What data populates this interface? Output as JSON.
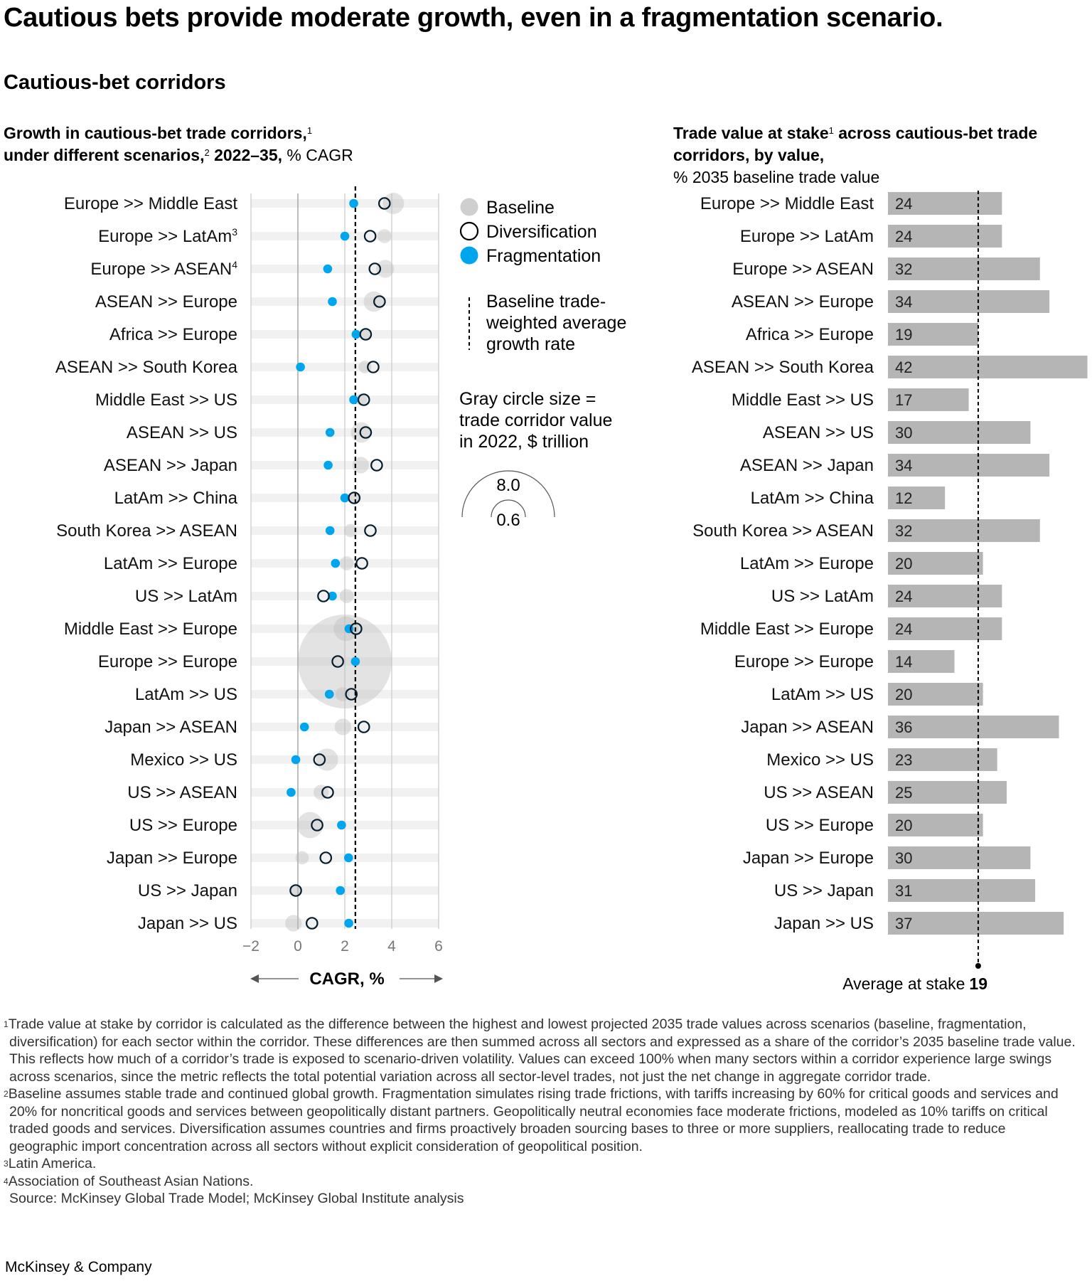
{
  "title": "Cautious bets provide moderate growth, even in a fragmentation scenario.",
  "subtitle": "Cautious-bet corridors",
  "left_title": {
    "part1": "Growth in cautious-bet trade corridors,",
    "sup1": "1",
    "part2": "under different scenarios,",
    "sup2": "2",
    "part3": " 2022–35,",
    "part4": " % CAGR"
  },
  "right_title": {
    "part1": "Trade value at stake",
    "sup1": "1",
    "part2": " across cautious-bet trade corridors, by value,",
    "part3": " % 2035 baseline trade value"
  },
  "legend": {
    "baseline": "Baseline",
    "diversification": "Diversification",
    "fragmentation": "Fragmentation",
    "avg_line": [
      "Baseline trade-",
      "weighted average",
      "growth rate"
    ],
    "size_note": [
      "Gray circle size =",
      "trade corridor value",
      "in 2022, $ trillion"
    ],
    "size_large": "8.0",
    "size_small": "0.6"
  },
  "colors": {
    "fragmentation": "#00a6ed",
    "diversification": "#051c2c",
    "baseline": "#cfcfcf",
    "bar": "#b5b5b5",
    "stripe": "#f1f1f1"
  },
  "chart_data": [
    {
      "type": "scatter",
      "title": "Growth in cautious-bet trade corridors, under different scenarios, 2022–35, % CAGR",
      "xlabel": "CAGR, %",
      "xlim": [
        -2,
        6
      ],
      "xticks": [
        "−2",
        "0",
        "2",
        "4",
        "6"
      ],
      "xtick_values": [
        -2,
        0,
        2,
        4,
        6
      ],
      "grid": true,
      "legend_position": "right",
      "baseline_weighted_average": 2.45,
      "categories": [
        "Europe >> Middle East",
        "Europe >> LatAm",
        "Europe >> ASEAN",
        "ASEAN >> Europe",
        "Africa >> Europe",
        "ASEAN >> South Korea",
        "Middle East >> US",
        "ASEAN >> US",
        "ASEAN >> Japan",
        "LatAm >> China",
        "South Korea >> ASEAN",
        "LatAm >> Europe",
        "US >> LatAm",
        "Middle East >> Europe",
        "Europe >> Europe",
        "LatAm >> US",
        "Japan >> ASEAN",
        "Mexico >> US",
        "US >> ASEAN",
        "US >> Europe",
        "Japan >> Europe",
        "US >> Japan",
        "Japan >> US"
      ],
      "category_superscripts": {
        "1": "3",
        "2": "4"
      },
      "series": [
        {
          "name": "Baseline",
          "values": [
            4.07,
            3.69,
            3.72,
            3.24,
            2.89,
            2.86,
            2.7,
            2.7,
            2.68,
            2.43,
            2.25,
            2.08,
            2.08,
            2.05,
            2.0,
            1.9,
            1.92,
            1.24,
            0.99,
            0.52,
            0.18,
            -0.09,
            -0.19
          ]
        },
        {
          "name": "Diversification",
          "values": [
            3.69,
            3.08,
            3.28,
            3.48,
            2.89,
            3.21,
            2.81,
            2.89,
            3.36,
            2.4,
            3.09,
            2.73,
            1.09,
            2.48,
            1.7,
            2.28,
            2.81,
            0.92,
            1.27,
            0.82,
            1.19,
            -0.09,
            0.6
          ]
        },
        {
          "name": "Fragmentation",
          "values": [
            2.38,
            2.0,
            1.27,
            1.47,
            2.48,
            0.11,
            2.38,
            1.37,
            1.29,
            2.0,
            1.37,
            1.6,
            1.47,
            2.18,
            2.45,
            1.34,
            0.28,
            -0.09,
            -0.29,
            1.86,
            2.16,
            1.81,
            2.17
          ]
        }
      ],
      "size_values_trillion": [
        0.41,
        0.18,
        0.29,
        0.38,
        0.08,
        0.15,
        0.13,
        0.38,
        0.25,
        0.13,
        0.16,
        0.18,
        0.18,
        0.55,
        8.0,
        0.18,
        0.25,
        0.45,
        0.21,
        0.62,
        0.16,
        0.05,
        0.25
      ]
    },
    {
      "type": "bar",
      "orientation": "horizontal",
      "title": "Trade value at stake across cautious-bet trade corridors, by value, % 2035 baseline trade value",
      "categories": [
        "Europe >> Middle East",
        "Europe >> LatAm",
        "Europe >> ASEAN",
        "ASEAN >> Europe",
        "Africa >> Europe",
        "ASEAN >> South Korea",
        "Middle East >> US",
        "ASEAN >> US",
        "ASEAN >> Japan",
        "LatAm >> China",
        "South Korea >> ASEAN",
        "LatAm >> Europe",
        "US >> LatAm",
        "Middle East >> Europe",
        "Europe >> Europe",
        "LatAm >> US",
        "Japan >> ASEAN",
        "Mexico >> US",
        "US >> ASEAN",
        "US >> Europe",
        "Japan >> Europe",
        "US >> Japan",
        "Japan >> US"
      ],
      "values": [
        24,
        24,
        32,
        34,
        19,
        42,
        17,
        30,
        34,
        12,
        32,
        20,
        24,
        24,
        14,
        20,
        36,
        23,
        25,
        20,
        30,
        31,
        37
      ],
      "average_label": "Average at stake",
      "average": 19,
      "average_text": "19"
    }
  ],
  "footnotes": [
    {
      "marker": "1",
      "text": "Trade value at stake by corridor is calculated as the difference between the highest and lowest projected 2035 trade values across scenarios (baseline, frag­mentation, diversification) for each sector within the corridor. These differences are then summed across all sectors and expressed as a share of the corridor’s 2035 baseline trade value. This reflects how much of a corridor’s trade is exposed to scenario-driven volatility. Values can exceed 100% when many sectors within a corridor experience large swings across scenarios, since the metric reflects the total potential variation across all sector-level trades, not just the net change in aggregate corridor trade."
    },
    {
      "marker": "2",
      "text": "Baseline assumes stable trade and continued global growth. Fragmentation simulates rising trade frictions, with tariffs increasing by 60% for critical goods and services and 20% for noncritical goods and services between geopolitically distant partners. Geopolitically neutral economies face moderate frictions, modeled as 10% tariffs on critical traded goods and services. Diversification assumes countries and firms proactively broaden sourcing bases to three or more suppliers, reallocating trade to reduce geographic import concentration across all sectors without explicit consideration of geopolitical position."
    },
    {
      "marker": "3",
      "text": "Latin America."
    },
    {
      "marker": "4",
      "text": "Association of Southeast Asian Nations."
    }
  ],
  "source": "Source: McKinsey Global Trade Model; McKinsey Global Institute analysis",
  "brand": "McKinsey & Company"
}
